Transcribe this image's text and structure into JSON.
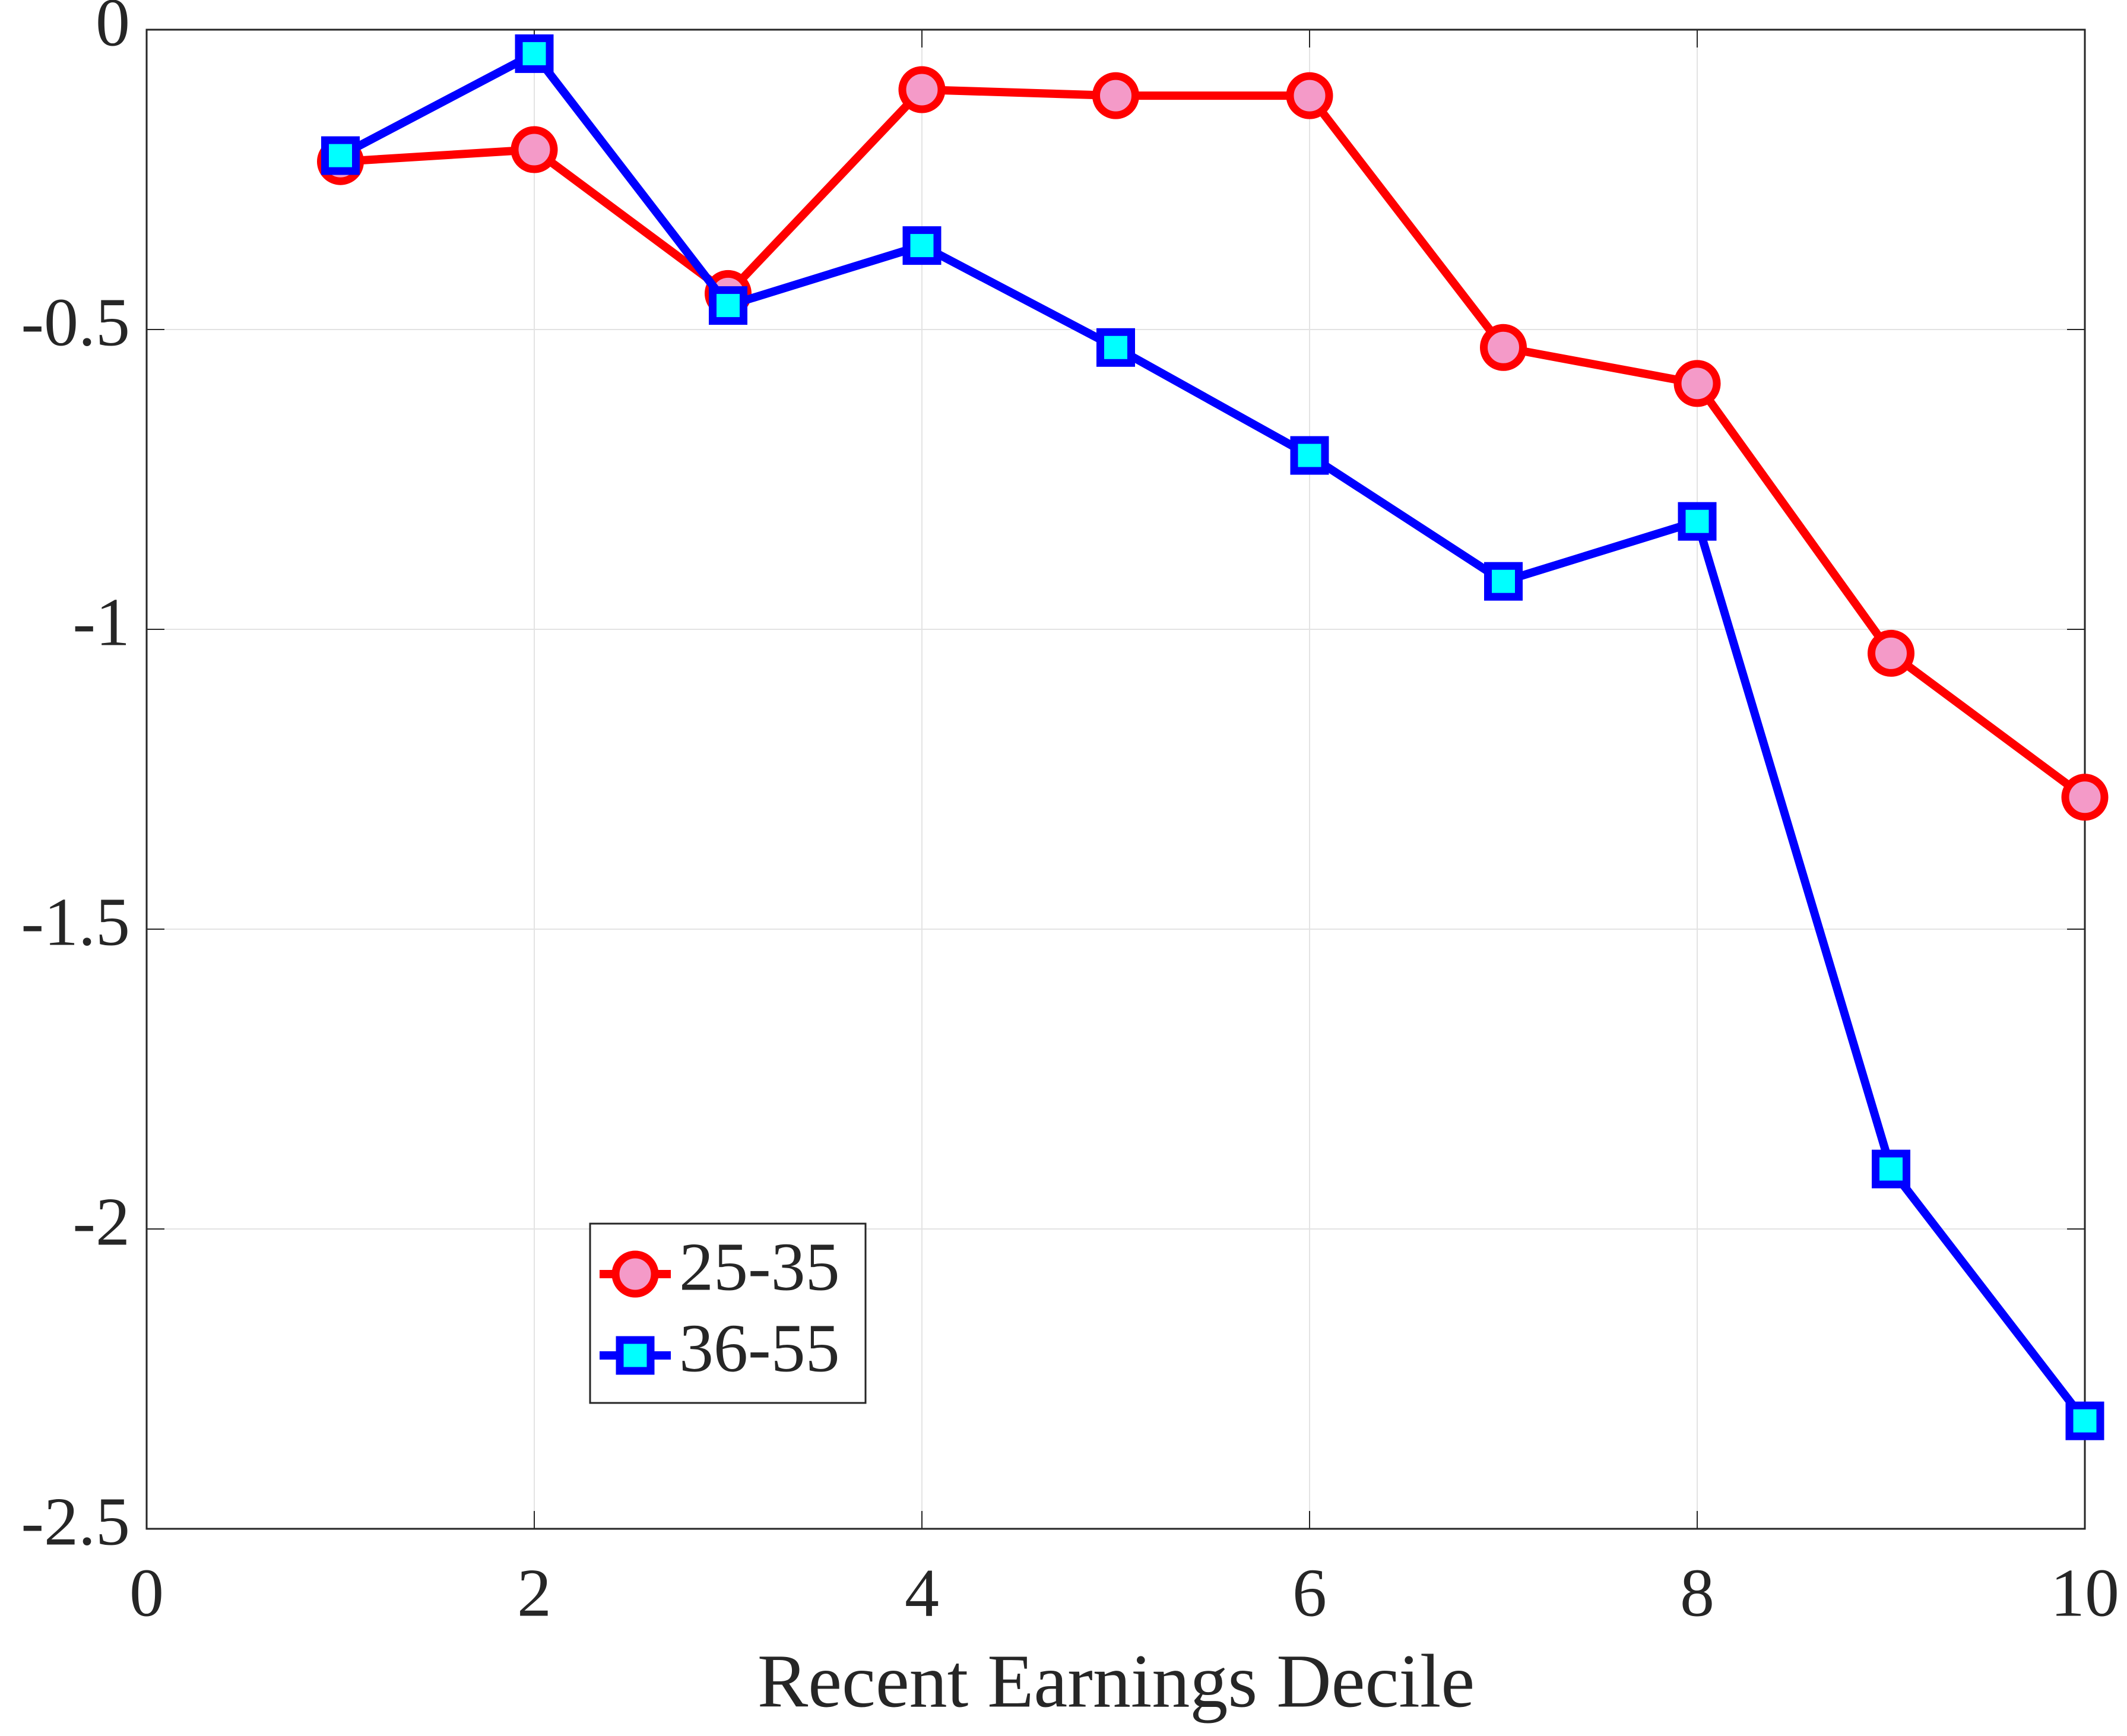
{
  "chart_data": {
    "type": "line",
    "xlabel": "Recent Earnings Decile",
    "x": [
      1,
      2,
      3,
      4,
      5,
      6,
      7,
      8,
      9,
      10
    ],
    "series": [
      {
        "name": "25-35",
        "color": "#ff0000",
        "marker": "circle",
        "marker_fill": "#f49ac8",
        "values": [
          -0.22,
          -0.2,
          -0.44,
          -0.1,
          -0.11,
          -0.11,
          -0.53,
          -0.59,
          -1.04,
          -1.28
        ]
      },
      {
        "name": "36-55",
        "color": "#0000ff",
        "marker": "square",
        "marker_fill": "#00ffff",
        "values": [
          -0.21,
          -0.04,
          -0.46,
          -0.36,
          -0.53,
          -0.71,
          -0.92,
          -0.82,
          -1.9,
          -2.32
        ]
      }
    ],
    "xlim": [
      0,
      10
    ],
    "xticks": [
      0,
      2,
      4,
      6,
      8,
      10
    ],
    "ylim": [
      -2.5,
      0
    ],
    "yticks": [
      0,
      -0.5,
      -1,
      -1.5,
      -2,
      -2.5
    ],
    "grid": true,
    "legend": "lower left"
  }
}
